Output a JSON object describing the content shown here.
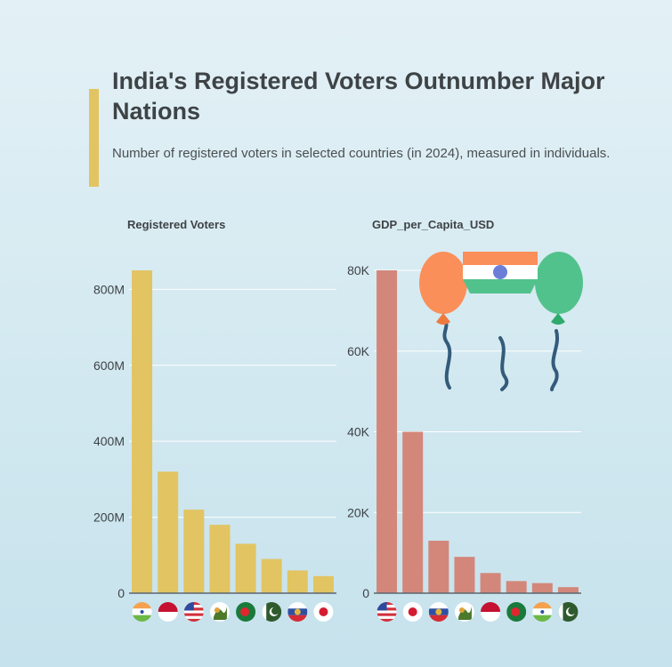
{
  "header": {
    "title": "India's Registered Voters Outnumber Major Nations",
    "subtitle": "Number of registered voters in selected countries (in 2024), measured in individuals."
  },
  "colors": {
    "accent": "#e2c462",
    "voters_bar": "#e2c462",
    "gdp_bar": "#d3877a",
    "gridline": "#ffffff",
    "text": "#3e4346"
  },
  "chart_data": [
    {
      "type": "bar",
      "title": "Registered Voters",
      "categories": [
        "India",
        "Indonesia",
        "United States",
        "Brazil",
        "Bangladesh",
        "Pakistan",
        "Russia",
        "Japan"
      ],
      "icons": [
        "india-flag-icon",
        "indonesia-flag-icon",
        "usa-flag-icon",
        "brazil-flag-icon",
        "bangladesh-flag-icon",
        "pakistan-flag-icon",
        "russia-flag-icon",
        "japan-flag-icon"
      ],
      "values": [
        850000000,
        320000000,
        220000000,
        180000000,
        130000000,
        90000000,
        60000000,
        45000000
      ],
      "ylim": [
        0,
        850000000
      ],
      "yticks": [
        0,
        200000000,
        400000000,
        600000000,
        800000000
      ],
      "ytick_labels": [
        "0",
        "200M",
        "400M",
        "600M",
        "800M"
      ],
      "grid": true
    },
    {
      "type": "bar",
      "title": "GDP_per_Capita_USD",
      "categories": [
        "United States",
        "Japan",
        "Russia",
        "Brazil",
        "Indonesia",
        "Bangladesh",
        "India",
        "Pakistan"
      ],
      "icons": [
        "usa-flag-icon",
        "japan-flag-icon",
        "russia-flag-icon",
        "brazil-flag-icon",
        "indonesia-flag-icon",
        "bangladesh-flag-icon",
        "india-flag-icon",
        "pakistan-flag-icon"
      ],
      "values": [
        80000,
        40000,
        13000,
        9000,
        5000,
        3000,
        2500,
        1500
      ],
      "ylim": [
        0,
        80000
      ],
      "yticks": [
        0,
        20000,
        40000,
        60000,
        80000
      ],
      "ytick_labels": [
        "0",
        "20K",
        "40K",
        "60K",
        "80K"
      ],
      "grid": true
    }
  ]
}
